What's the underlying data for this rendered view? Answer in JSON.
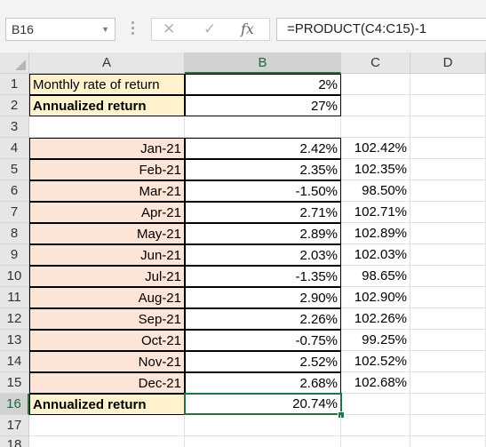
{
  "formula_bar": {
    "name_box": "B16",
    "cancel_glyph": "✕",
    "enter_glyph": "✓",
    "fx_label": "fx",
    "formula": "=PRODUCT(C4:C15)-1"
  },
  "columns": [
    "A",
    "B",
    "C",
    "D"
  ],
  "rows": [
    {
      "num": "1",
      "a": "Monthly rate of return",
      "b": "2%",
      "c": ""
    },
    {
      "num": "2",
      "a": "Annualized return",
      "b": "27%",
      "c": ""
    },
    {
      "num": "3",
      "a": "",
      "b": "",
      "c": ""
    },
    {
      "num": "4",
      "a": "Jan-21",
      "b": "2.42%",
      "c": "102.42%"
    },
    {
      "num": "5",
      "a": "Feb-21",
      "b": "2.35%",
      "c": "102.35%"
    },
    {
      "num": "6",
      "a": "Mar-21",
      "b": "-1.50%",
      "c": "98.50%"
    },
    {
      "num": "7",
      "a": "Apr-21",
      "b": "2.71%",
      "c": "102.71%"
    },
    {
      "num": "8",
      "a": "May-21",
      "b": "2.89%",
      "c": "102.89%"
    },
    {
      "num": "9",
      "a": "Jun-21",
      "b": "2.03%",
      "c": "102.03%"
    },
    {
      "num": "10",
      "a": "Jul-21",
      "b": "-1.35%",
      "c": "98.65%"
    },
    {
      "num": "11",
      "a": "Aug-21",
      "b": "2.90%",
      "c": "102.90%"
    },
    {
      "num": "12",
      "a": "Sep-21",
      "b": "2.26%",
      "c": "102.26%"
    },
    {
      "num": "13",
      "a": "Oct-21",
      "b": "-0.75%",
      "c": "99.25%"
    },
    {
      "num": "14",
      "a": "Nov-21",
      "b": "2.52%",
      "c": "102.52%"
    },
    {
      "num": "15",
      "a": "Dec-21",
      "b": "2.68%",
      "c": "102.68%"
    },
    {
      "num": "16",
      "a": "Annualized return",
      "b": "20.74%",
      "c": ""
    },
    {
      "num": "17",
      "a": "",
      "b": "",
      "c": ""
    },
    {
      "num": "18",
      "a": "",
      "b": "",
      "c": ""
    }
  ],
  "selected_cell": "B16",
  "colors": {
    "yellow_fill": "#fff2cc",
    "peach_fill": "#fce4d6",
    "selection_green": "#217346"
  }
}
